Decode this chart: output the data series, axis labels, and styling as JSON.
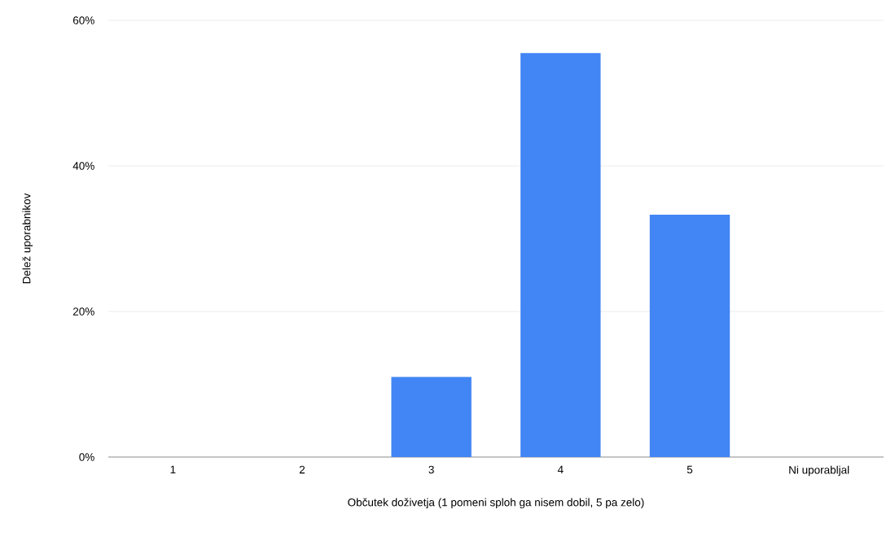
{
  "chart_data": {
    "type": "bar",
    "xlabel": "Občutek doživetja (1 pomeni sploh ga nisem dobil, 5 pa zelo)",
    "ylabel": "Delež uporabnikov",
    "categories": [
      "1",
      "2",
      "3",
      "4",
      "5",
      "Ni uporabljal"
    ],
    "values": [
      0,
      0,
      11,
      55.5,
      33.3,
      0
    ],
    "color": "#4285f4",
    "ylim": [
      0,
      60
    ],
    "yticks": [
      {
        "value": 0,
        "label": "0%"
      },
      {
        "value": 20,
        "label": "20%"
      },
      {
        "value": 40,
        "label": "40%"
      },
      {
        "value": 60,
        "label": "60%"
      }
    ],
    "grid": "y"
  }
}
